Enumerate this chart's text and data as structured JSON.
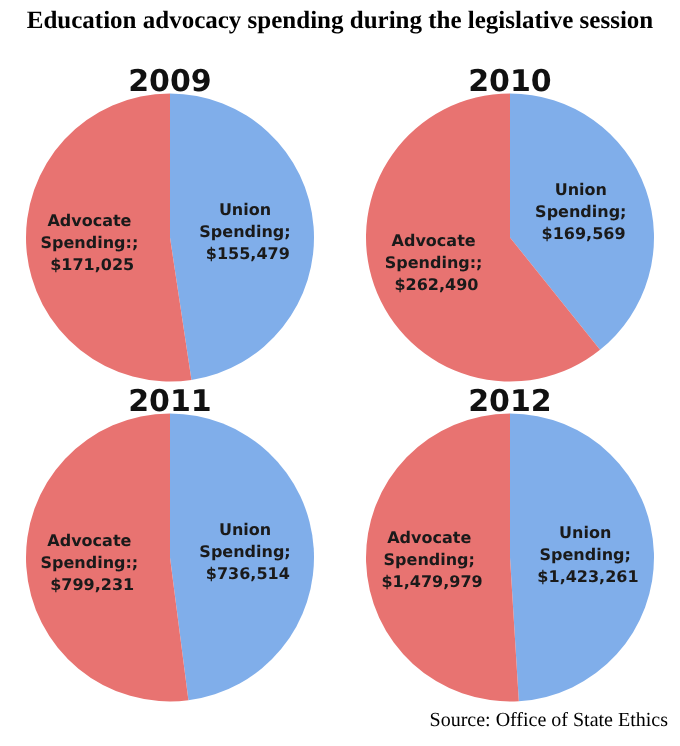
{
  "chart_data": [
    {
      "type": "pie",
      "title": "2009",
      "annotations": [
        "Education advocacy spending during the legislative session"
      ],
      "categories": [
        "Union Spending",
        "Advocate Spending"
      ],
      "values": [
        155479,
        171025
      ],
      "value_labels": [
        "; $155,479",
        ":; $171,025"
      ],
      "colors": [
        "#80aeea",
        "#e87371"
      ]
    },
    {
      "type": "pie",
      "title": "2010",
      "categories": [
        "Union Spending",
        "Advocate Spending"
      ],
      "values": [
        169569,
        262490
      ],
      "value_labels": [
        "; $169,569",
        ":; $262,490"
      ],
      "colors": [
        "#80aeea",
        "#e87371"
      ]
    },
    {
      "type": "pie",
      "title": "2011",
      "categories": [
        "Union Spending",
        "Advocate Spending"
      ],
      "values": [
        736514,
        799231
      ],
      "value_labels": [
        "; $736,514",
        ":; $799,231"
      ],
      "colors": [
        "#80aeea",
        "#e87371"
      ]
    },
    {
      "type": "pie",
      "title": "2012",
      "annotations": [
        "Source: Office of State Ethics"
      ],
      "categories": [
        "Union Spending",
        "Advocate Spending"
      ],
      "values": [
        1423261,
        1479979
      ],
      "value_labels": [
        "; $1,423,261",
        "; $1,479,979"
      ],
      "colors": [
        "#80aeea",
        "#e87371"
      ]
    }
  ]
}
